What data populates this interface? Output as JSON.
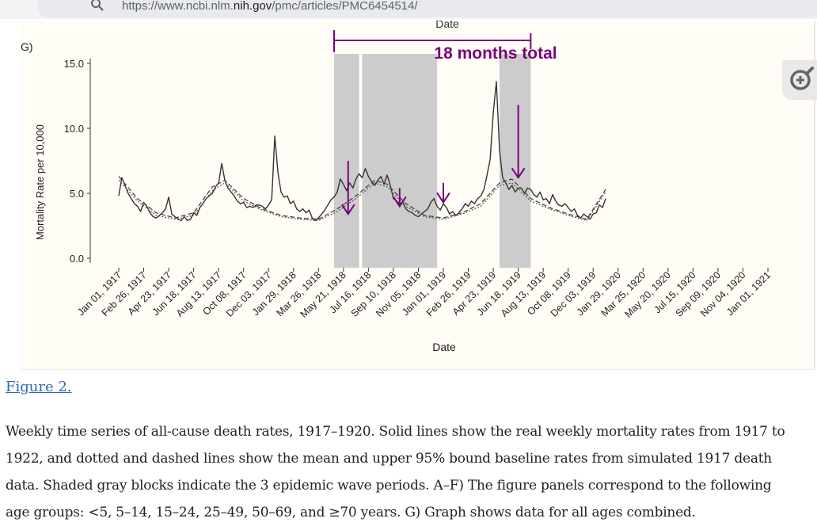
{
  "browser": {
    "url_prefix": "https://www.ncbi.nlm.",
    "url_domain": "nih.gov",
    "url_suffix": "/pmc/articles/PMC6454514/",
    "icons": {
      "search": "search-icon",
      "zoom": "zoom-in-icon"
    }
  },
  "figure": {
    "prev_axis_title": "Date",
    "panel_label": "G)",
    "annotation": "18 months total",
    "link_text": "Figure 2.",
    "caption_lines": [
      "Weekly time series of all-cause death rates, 1917–1920. Solid lines show the real weekly mortality rates from 1917 to",
      "1922, and dotted and dashed lines show the mean and upper 95% bound baseline rates from simulated 1917 death",
      "data. Shaded gray blocks indicate the 3 epidemic wave periods. A–F) The figure panels correspond to the following",
      "age groups: <5, 5–14, 15–24, 25–49, 50–69, and ≥70 years. G) Graph shows data for all ages combined."
    ]
  },
  "chart_data": {
    "type": "line",
    "title": "",
    "xlabel": "Date",
    "ylabel": "Mortality Rate per 10,000",
    "ylim": [
      -0.8,
      15.6
    ],
    "yticks": [
      "0.0",
      "5.0",
      "10.0",
      "15.0"
    ],
    "ytick_values": [
      0,
      5,
      10,
      15
    ],
    "xticks": [
      "Jan 01, 1917",
      "Feb 26, 1917",
      "Apr 23, 1917",
      "Jun 18, 1917",
      "Aug 13, 1917",
      "Oct 08, 1917",
      "Dec 03, 1917",
      "Jan 29, 1918",
      "Mar 26, 1918",
      "May 21, 1918",
      "Jul 16, 1918",
      "Sep 10, 1918",
      "Nov 05, 1918",
      "Jan 01, 1919",
      "Feb 26, 1919",
      "Apr 23, 1919",
      "Jun 18, 1919",
      "Aug 13, 1919",
      "Oct 08, 1919",
      "Dec 03, 1919",
      "Jan 29, 1920",
      "Mar 25, 1920",
      "May 20, 1920",
      "Jul 15, 1920",
      "Sep 09, 1920",
      "Nov 04, 1920",
      "Jan 01, 1921"
    ],
    "week_range": [
      0,
      208
    ],
    "shaded_periods_weeks": [
      [
        69,
        77
      ],
      [
        78,
        102
      ],
      [
        122,
        132
      ]
    ],
    "bracket_weeks": [
      69,
      132
    ],
    "arrows": [
      {
        "week": 73.5,
        "from": 7.5,
        "to": 3.4
      },
      {
        "week": 90,
        "from": 5.4,
        "to": 4.0
      },
      {
        "week": 104,
        "from": 5.8,
        "to": 4.3
      },
      {
        "week": 128,
        "from": 11.8,
        "to": 6.2
      }
    ],
    "series": [
      {
        "name": "Observed weekly mortality rate",
        "style": "solid",
        "points": [
          [
            0,
            4.8
          ],
          [
            1,
            6.2
          ],
          [
            2,
            5.6
          ],
          [
            3,
            5.0
          ],
          [
            4,
            4.6
          ],
          [
            5,
            4.2
          ],
          [
            6,
            4.0
          ],
          [
            7,
            3.6
          ],
          [
            8,
            4.3
          ],
          [
            9,
            4.0
          ],
          [
            10,
            3.5
          ],
          [
            11,
            3.2
          ],
          [
            12,
            3.1
          ],
          [
            13,
            3.3
          ],
          [
            14,
            3.5
          ],
          [
            15,
            3.8
          ],
          [
            16,
            4.7
          ],
          [
            17,
            3.4
          ],
          [
            18,
            3.2
          ],
          [
            19,
            3.0
          ],
          [
            20,
            2.9
          ],
          [
            21,
            3.2
          ],
          [
            22,
            2.9
          ],
          [
            23,
            3.0
          ],
          [
            24,
            3.5
          ],
          [
            25,
            3.3
          ],
          [
            26,
            3.9
          ],
          [
            27,
            4.2
          ],
          [
            28,
            4.6
          ],
          [
            29,
            4.8
          ],
          [
            30,
            5.0
          ],
          [
            31,
            5.5
          ],
          [
            32,
            5.8
          ],
          [
            33,
            7.3
          ],
          [
            34,
            6.0
          ],
          [
            35,
            5.4
          ],
          [
            36,
            5.1
          ],
          [
            37,
            4.8
          ],
          [
            38,
            4.4
          ],
          [
            39,
            4.2
          ],
          [
            40,
            4.3
          ],
          [
            41,
            3.9
          ],
          [
            42,
            4.0
          ],
          [
            43,
            3.9
          ],
          [
            44,
            4.1
          ],
          [
            45,
            4.1
          ],
          [
            46,
            4.0
          ],
          [
            47,
            3.8
          ],
          [
            48,
            4.1
          ],
          [
            49,
            4.5
          ],
          [
            50,
            9.4
          ],
          [
            51,
            6.6
          ],
          [
            52,
            5.1
          ],
          [
            53,
            4.7
          ],
          [
            54,
            4.8
          ],
          [
            55,
            4.2
          ],
          [
            56,
            4.4
          ],
          [
            57,
            3.8
          ],
          [
            58,
            3.6
          ],
          [
            59,
            3.8
          ],
          [
            60,
            3.5
          ],
          [
            61,
            3.7
          ],
          [
            62,
            3.1
          ],
          [
            63,
            2.9
          ],
          [
            64,
            3.1
          ],
          [
            65,
            3.4
          ],
          [
            66,
            3.7
          ],
          [
            67,
            4.1
          ],
          [
            68,
            4.5
          ],
          [
            69,
            4.7
          ],
          [
            70,
            5.1
          ],
          [
            71,
            6.1
          ],
          [
            72,
            5.7
          ],
          [
            73,
            5.2
          ],
          [
            74,
            5.8
          ],
          [
            75,
            5.4
          ],
          [
            76,
            6.1
          ],
          [
            77,
            6.5
          ],
          [
            78,
            6.2
          ],
          [
            79,
            6.9
          ],
          [
            80,
            6.3
          ],
          [
            81,
            5.9
          ],
          [
            82,
            5.6
          ],
          [
            83,
            6.0
          ],
          [
            84,
            6.3
          ],
          [
            85,
            5.7
          ],
          [
            86,
            6.4
          ],
          [
            87,
            5.6
          ],
          [
            88,
            4.6
          ],
          [
            89,
            4.4
          ],
          [
            90,
            4.2
          ],
          [
            91,
            4.3
          ],
          [
            92,
            3.8
          ],
          [
            93,
            3.6
          ],
          [
            94,
            3.5
          ],
          [
            95,
            3.3
          ],
          [
            96,
            3.2
          ],
          [
            97,
            3.4
          ],
          [
            98,
            3.6
          ],
          [
            99,
            3.8
          ],
          [
            100,
            4.3
          ],
          [
            101,
            4.6
          ],
          [
            102,
            4.0
          ],
          [
            103,
            3.7
          ],
          [
            104,
            4.2
          ],
          [
            105,
            3.9
          ],
          [
            106,
            3.4
          ],
          [
            107,
            3.6
          ],
          [
            108,
            3.3
          ],
          [
            109,
            3.5
          ],
          [
            110,
            3.8
          ],
          [
            111,
            4.2
          ],
          [
            112,
            4.0
          ],
          [
            113,
            4.4
          ],
          [
            114,
            4.2
          ],
          [
            115,
            4.6
          ],
          [
            116,
            4.8
          ],
          [
            117,
            5.3
          ],
          [
            118,
            6.4
          ],
          [
            119,
            7.6
          ],
          [
            120,
            11.2
          ],
          [
            121,
            13.6
          ],
          [
            122,
            8.3
          ],
          [
            123,
            6.2
          ],
          [
            124,
            5.8
          ],
          [
            125,
            5.3
          ],
          [
            126,
            5.6
          ],
          [
            127,
            5.1
          ],
          [
            128,
            5.4
          ],
          [
            129,
            5.4
          ],
          [
            130,
            5.0
          ],
          [
            131,
            5.4
          ],
          [
            132,
            5.3
          ],
          [
            133,
            4.9
          ],
          [
            134,
            4.7
          ],
          [
            135,
            5.1
          ],
          [
            136,
            4.5
          ],
          [
            137,
            4.6
          ],
          [
            138,
            4.2
          ],
          [
            139,
            4.9
          ],
          [
            140,
            4.4
          ],
          [
            141,
            4.1
          ],
          [
            142,
            4.0
          ],
          [
            143,
            4.2
          ],
          [
            144,
            3.9
          ],
          [
            145,
            3.6
          ],
          [
            146,
            3.8
          ],
          [
            147,
            3.3
          ],
          [
            148,
            3.1
          ],
          [
            149,
            3.4
          ],
          [
            150,
            3.2
          ],
          [
            151,
            3.0
          ],
          [
            152,
            3.4
          ],
          [
            153,
            3.5
          ],
          [
            154,
            4.1
          ],
          [
            155,
            3.9
          ],
          [
            156,
            4.6
          ]
        ]
      },
      {
        "name": "Simulated baseline mean",
        "style": "dotted",
        "points": [
          [
            0,
            6.0
          ],
          [
            6,
            4.4
          ],
          [
            12,
            3.3
          ],
          [
            18,
            3.0
          ],
          [
            24,
            3.3
          ],
          [
            30,
            5.2
          ],
          [
            34,
            5.8
          ],
          [
            40,
            4.4
          ],
          [
            46,
            3.7
          ],
          [
            52,
            3.2
          ],
          [
            58,
            3.0
          ],
          [
            64,
            2.9
          ],
          [
            70,
            3.6
          ],
          [
            76,
            4.6
          ],
          [
            82,
            5.8
          ],
          [
            86,
            5.5
          ],
          [
            92,
            4.0
          ],
          [
            98,
            3.2
          ],
          [
            104,
            3.0
          ],
          [
            110,
            3.4
          ],
          [
            116,
            4.0
          ],
          [
            122,
            5.6
          ],
          [
            126,
            5.8
          ],
          [
            132,
            4.4
          ],
          [
            138,
            3.8
          ],
          [
            144,
            3.3
          ],
          [
            150,
            2.9
          ],
          [
            156,
            5.1
          ]
        ]
      },
      {
        "name": "Simulated baseline upper 95% bound",
        "style": "dashed",
        "points": [
          [
            0,
            6.3
          ],
          [
            6,
            4.6
          ],
          [
            12,
            3.5
          ],
          [
            18,
            3.1
          ],
          [
            24,
            3.5
          ],
          [
            30,
            5.5
          ],
          [
            34,
            6.0
          ],
          [
            40,
            4.6
          ],
          [
            46,
            3.8
          ],
          [
            52,
            3.3
          ],
          [
            58,
            3.1
          ],
          [
            64,
            3.0
          ],
          [
            70,
            3.8
          ],
          [
            76,
            4.8
          ],
          [
            82,
            6.0
          ],
          [
            86,
            5.7
          ],
          [
            92,
            4.2
          ],
          [
            98,
            3.3
          ],
          [
            104,
            3.1
          ],
          [
            110,
            3.5
          ],
          [
            116,
            4.2
          ],
          [
            122,
            5.8
          ],
          [
            126,
            6.1
          ],
          [
            132,
            4.6
          ],
          [
            138,
            3.9
          ],
          [
            144,
            3.4
          ],
          [
            150,
            3.0
          ],
          [
            156,
            5.3
          ]
        ]
      }
    ]
  }
}
